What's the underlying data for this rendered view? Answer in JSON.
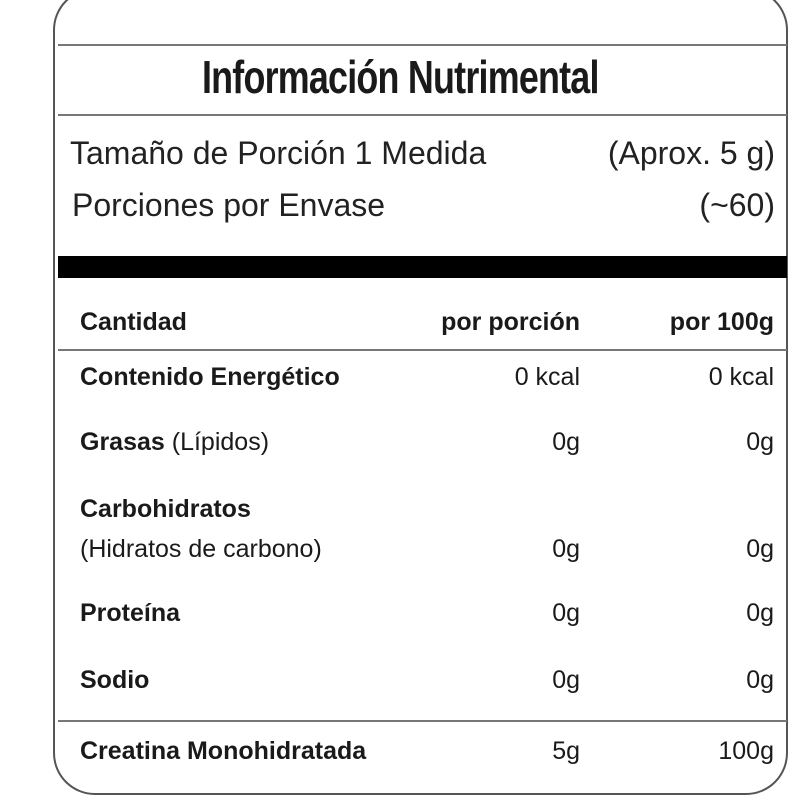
{
  "title": "Información Nutrimental",
  "serving": {
    "size_label": "Tamaño de Porción 1 Medida",
    "size_value": "(Aprox. 5 g)",
    "servings_label": "Porciones por Envase",
    "servings_value": "(~60)"
  },
  "table": {
    "headers": [
      "Cantidad",
      "por porción",
      "por 100g"
    ],
    "rows": [
      {
        "label": "Contenido Energético",
        "sublabel": "",
        "per_serving": "0 kcal",
        "per_100g": "0 kcal"
      },
      {
        "label": "Grasas",
        "sublabel": "(Lípidos)",
        "per_serving": "0g",
        "per_100g": "0g"
      },
      {
        "label": "Carbohidratos",
        "sublabel": "(Hidratos de carbono)",
        "per_serving": "0g",
        "per_100g": "0g"
      },
      {
        "label": "Proteína",
        "sublabel": "",
        "per_serving": "0g",
        "per_100g": "0g"
      },
      {
        "label": "Sodio",
        "sublabel": "",
        "per_serving": "0g",
        "per_100g": "0g"
      },
      {
        "label": "Creatina Monohidratada",
        "sublabel": "",
        "per_serving": "5g",
        "per_100g": "100g"
      }
    ]
  }
}
